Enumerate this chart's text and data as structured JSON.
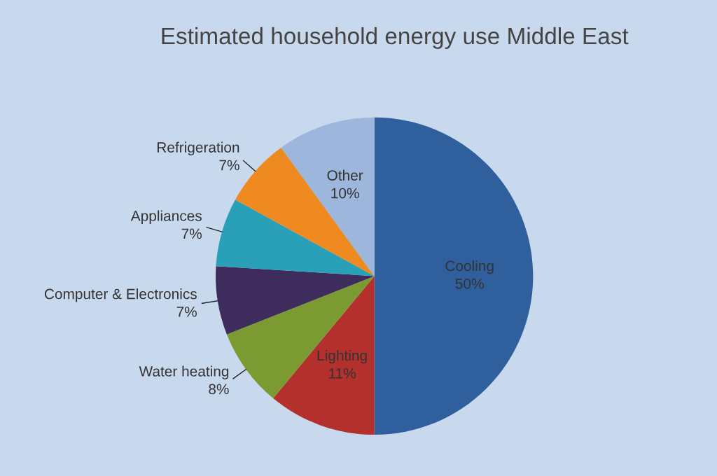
{
  "chart_data": {
    "type": "pie",
    "title": "Estimated household energy use Middle East",
    "categories": [
      "Cooling",
      "Lighting",
      "Water heating",
      "Computer & Electronics",
      "Appliances",
      "Refrigeration",
      "Other"
    ],
    "values": [
      50,
      11,
      8,
      7,
      7,
      7,
      10
    ],
    "value_labels": [
      "50%",
      "11%",
      "8%",
      "7%",
      "7%",
      "7%",
      "10%"
    ],
    "colors": [
      "#2f5f9c",
      "#b3302c",
      "#7c9a32",
      "#3e2d5c",
      "#2a9fb8",
      "#ef8a20",
      "#9cb6dc"
    ],
    "legend": false
  }
}
